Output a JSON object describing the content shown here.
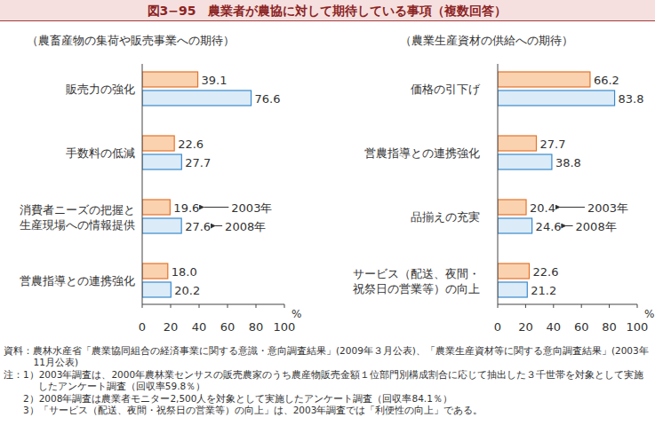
{
  "title": "図3−95　農業者が農協に対して期待している事項（複数回答）",
  "chart_data": [
    {
      "type": "bar",
      "orientation": "horizontal",
      "subtitle": "（農畜産物の集荷や販売事業への期待）",
      "categories": [
        "販売力の強化",
        "手数料の低減",
        "消費者ニーズの把握と\n生産現場への情報提供",
        "営農指導との連携強化"
      ],
      "series": [
        {
          "name": "2003年",
          "color": "#fbd2b0",
          "values": [
            39.1,
            22.6,
            19.6,
            18.0
          ],
          "value_labels": [
            "39.1",
            "22.6",
            "19.6",
            "18.0"
          ]
        },
        {
          "name": "2008年",
          "color": "#dbebf8",
          "values": [
            76.6,
            27.7,
            27.6,
            20.2
          ],
          "value_labels": [
            "76.6",
            "27.7",
            "27.6",
            "20.2"
          ]
        }
      ],
      "xlim": [
        0,
        100
      ],
      "xticks": [
        0,
        20,
        40,
        60,
        80,
        100
      ],
      "xlabel": "%",
      "data_labels": true,
      "grid": false
    },
    {
      "type": "bar",
      "orientation": "horizontal",
      "subtitle": "（農業生産資材の供給への期待）",
      "categories": [
        "価格の引下げ",
        "営農指導との連携強化",
        "品揃えの充実",
        "サービス（配送、夜間・\n祝祭日の営業等）の向上"
      ],
      "series": [
        {
          "name": "2003年",
          "color": "#fbd2b0",
          "values": [
            66.2,
            27.7,
            20.4,
            22.6
          ],
          "value_labels": [
            "66.2",
            "27.7",
            "20.4",
            "22.6"
          ]
        },
        {
          "name": "2008年",
          "color": "#dbebf8",
          "values": [
            83.8,
            38.8,
            24.6,
            21.2
          ],
          "value_labels": [
            "83.8",
            "38.8",
            "24.6",
            "21.2"
          ]
        }
      ],
      "xlim": [
        0,
        100
      ],
      "xticks": [
        0,
        20,
        40,
        60,
        80,
        100
      ],
      "xlabel": "%",
      "data_labels": true,
      "grid": false
    }
  ],
  "source": "資料：農林水産省「農業協同組合の経済事業に関する意識・意向調査結果」(2009年３月公表)、「農業生産資材等に関する意向調査結果」(2003年11月公表)",
  "notes_label": "注：",
  "notes": [
    "1）2003年調査は、2000年農林業センサスの販売農家のうち農産物販売金額１位部門別構成割合に応じて抽出した３千世帯を対象として実施したアンケート調査（回収率59.8％）",
    "2）2008年調査は農業者モニター2,500人を対象として実施したアンケート調査（回収率84.1％）",
    "3）「サービス（配送、夜間・祝祭日の営業等）の向上」は、2003年調査では「利便性の向上」である。"
  ]
}
